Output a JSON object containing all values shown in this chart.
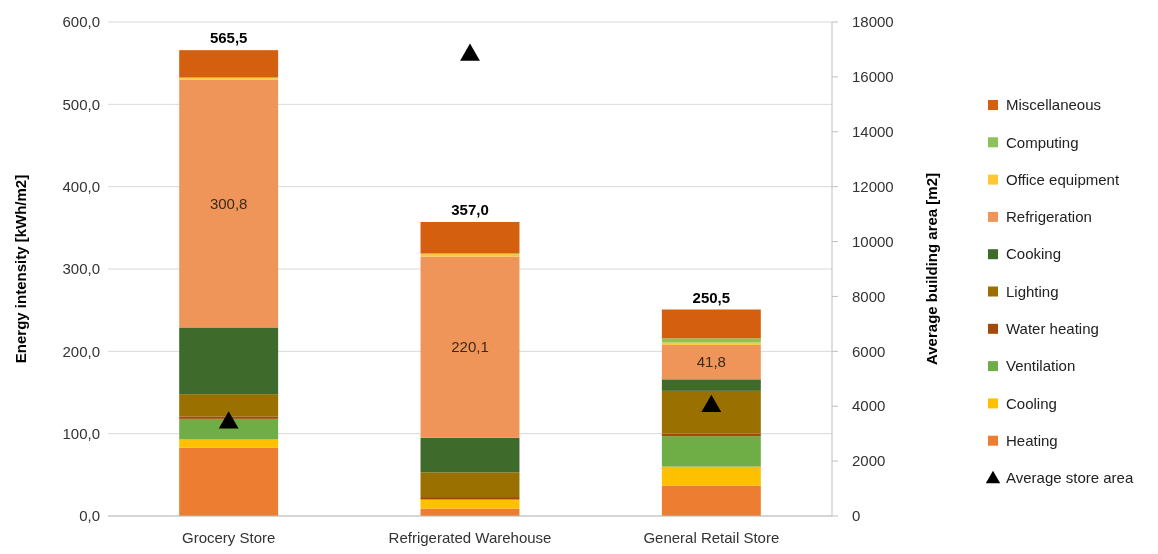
{
  "chart_data": {
    "type": "bar",
    "stacked": true,
    "ylabel": "Energy intensity [kWh/m2]",
    "y2label": "Average building area [m2]",
    "categories": [
      "Grocery Store",
      "Refrigerated Warehouse",
      "General Retail Store"
    ],
    "series": [
      {
        "name": "Heating",
        "color": "#ed7d31",
        "values": [
          83,
          9,
          37
        ]
      },
      {
        "name": "Cooling",
        "color": "#ffc000",
        "values": [
          10,
          11,
          23
        ]
      },
      {
        "name": "Ventilation",
        "color": "#6fad47",
        "values": [
          25,
          0,
          37
        ]
      },
      {
        "name": "Water heating",
        "color": "#a34a0a",
        "values": [
          3,
          3,
          3
        ]
      },
      {
        "name": "Lighting",
        "color": "#9a7000",
        "values": [
          27,
          30,
          52
        ]
      },
      {
        "name": "Cooking",
        "color": "#3e6b2b",
        "values": [
          81,
          42,
          14
        ]
      },
      {
        "name": "Refrigeration",
        "color": "#f0955a",
        "values": [
          300.8,
          220.1,
          41.8
        ],
        "value_labels": [
          "300,8",
          "220,1",
          "41,8"
        ]
      },
      {
        "name": "Office equipment",
        "color": "#ffc832",
        "values": [
          2,
          3,
          3
        ]
      },
      {
        "name": "Computing",
        "color": "#8fc15a",
        "values": [
          1,
          1,
          5
        ]
      },
      {
        "name": "Miscellaneous",
        "color": "#d35f0f",
        "values": [
          33,
          38,
          35
        ]
      },
      {
        "name": "Average store area",
        "type": "scatter",
        "axis": "y2",
        "color": "#000000",
        "marker": "triangle",
        "x": [
          "Grocery Store",
          "Refrigerated Warehouse",
          "General Retail Store"
        ],
        "values": [
          3400,
          16800,
          4000
        ]
      }
    ],
    "totals": [
      "565,5",
      "357,0",
      "250,5"
    ],
    "ylim": [
      0,
      600
    ],
    "yticks": [
      {
        "value": 0,
        "label": "0,0"
      },
      {
        "value": 100,
        "label": "100,0"
      },
      {
        "value": 200,
        "label": "200,0"
      },
      {
        "value": 300,
        "label": "300,0"
      },
      {
        "value": 400,
        "label": "400,0"
      },
      {
        "value": 500,
        "label": "500,0"
      },
      {
        "value": 600,
        "label": "600,0"
      }
    ],
    "y2lim": [
      0,
      18000
    ],
    "y2ticks": [
      0,
      2000,
      4000,
      6000,
      8000,
      10000,
      12000,
      14000,
      16000,
      18000
    ],
    "grid": "y",
    "legend": "right"
  }
}
